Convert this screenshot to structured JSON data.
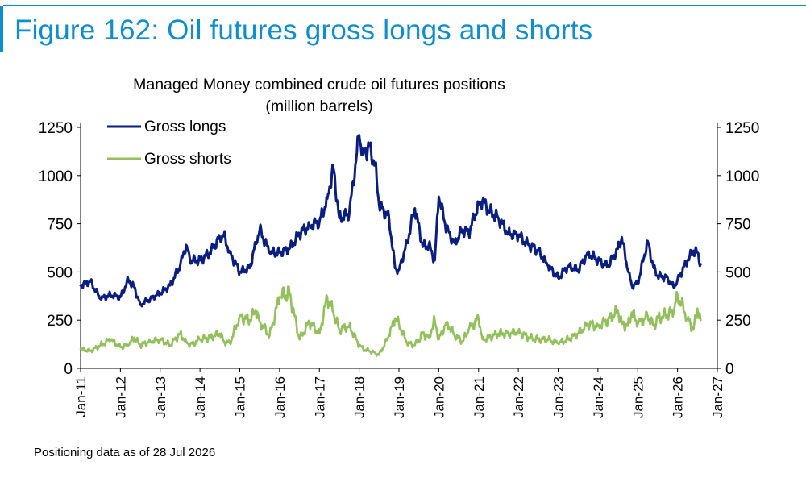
{
  "figure_title": "Figure 162: Oil futures gross longs and shorts",
  "footnote": "Positioning data as of 28 Jul 2026",
  "colors": {
    "title": "#0d8ecf",
    "longs": "#0a1e82",
    "shorts": "#92c15c",
    "axis": "#000000"
  },
  "chart_data": {
    "type": "line",
    "title": "Managed Money combined crude oil futures positions",
    "subtitle": "(million barrels)",
    "xlabel": "",
    "ylabel": "",
    "ylim": [
      0,
      1250
    ],
    "yticks": [
      0,
      250,
      500,
      750,
      1000,
      1250
    ],
    "y2ticks": [
      0,
      250,
      500,
      750,
      1000,
      1250
    ],
    "xlim": [
      2011,
      2027
    ],
    "xticks": [
      "Jan-11",
      "Jan-12",
      "Jan-13",
      "Jan-14",
      "Jan-15",
      "Jan-16",
      "Jan-17",
      "Jan-18",
      "Jan-19",
      "Jan-20",
      "Jan-21",
      "Jan-22",
      "Jan-23",
      "Jan-24",
      "Jan-25",
      "Jan-26",
      "Jan-27"
    ],
    "grid": false,
    "legend_position": "top-left",
    "x": [
      2011.0,
      2011.25,
      2011.5,
      2011.75,
      2012.0,
      2012.2,
      2012.35,
      2012.5,
      2012.75,
      2013.0,
      2013.25,
      2013.5,
      2013.65,
      2013.75,
      2014.0,
      2014.25,
      2014.5,
      2014.6,
      2014.75,
      2015.0,
      2015.25,
      2015.4,
      2015.5,
      2015.75,
      2016.0,
      2016.25,
      2016.5,
      2016.75,
      2017.0,
      2017.2,
      2017.35,
      2017.5,
      2017.75,
      2018.0,
      2018.1,
      2018.25,
      2018.4,
      2018.5,
      2018.75,
      2018.9,
      2019.0,
      2019.2,
      2019.4,
      2019.6,
      2019.75,
      2019.9,
      2020.0,
      2020.2,
      2020.4,
      2020.6,
      2020.75,
      2021.0,
      2021.1,
      2021.25,
      2021.5,
      2021.75,
      2022.0,
      2022.25,
      2022.5,
      2022.75,
      2023.0,
      2023.25,
      2023.5,
      2023.75,
      2024.0,
      2024.25,
      2024.5,
      2024.6,
      2024.75,
      2024.85,
      2025.0,
      2025.25,
      2025.4,
      2025.5,
      2025.75,
      2025.9,
      2026.0,
      2026.25,
      2026.4,
      2026.5,
      2026.58
    ],
    "series": [
      {
        "name": "Gross longs",
        "values": [
          430,
          450,
          360,
          380,
          370,
          460,
          420,
          330,
          360,
          390,
          430,
          530,
          640,
          560,
          560,
          600,
          680,
          690,
          600,
          500,
          520,
          650,
          720,
          600,
          600,
          620,
          700,
          740,
          760,
          880,
          1040,
          780,
          800,
          1210,
          1110,
          1150,
          1060,
          850,
          780,
          520,
          510,
          650,
          830,
          630,
          640,
          560,
          890,
          720,
          650,
          720,
          700,
          850,
          870,
          820,
          780,
          700,
          690,
          640,
          610,
          530,
          470,
          530,
          510,
          600,
          560,
          530,
          620,
          680,
          510,
          430,
          440,
          660,
          520,
          480,
          470,
          420,
          460,
          560,
          610,
          600,
          540
        ]
      },
      {
        "name": "Gross shorts",
        "values": [
          100,
          90,
          120,
          150,
          110,
          120,
          160,
          120,
          140,
          150,
          120,
          180,
          140,
          120,
          150,
          160,
          180,
          140,
          130,
          270,
          250,
          300,
          240,
          170,
          370,
          390,
          150,
          240,
          180,
          370,
          290,
          200,
          220,
          120,
          100,
          90,
          80,
          70,
          170,
          260,
          230,
          130,
          120,
          180,
          160,
          250,
          150,
          240,
          170,
          140,
          200,
          260,
          150,
          160,
          180,
          180,
          190,
          160,
          150,
          150,
          130,
          150,
          180,
          230,
          220,
          250,
          300,
          230,
          220,
          290,
          230,
          270,
          220,
          260,
          280,
          290,
          380,
          260,
          200,
          310,
          250
        ]
      }
    ]
  }
}
